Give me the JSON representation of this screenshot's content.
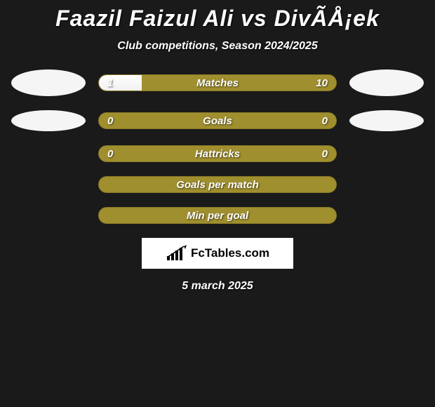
{
  "title": "Faazil Faizul Ali vs DivÃÅ¡ek",
  "subtitle": "Club competitions, Season 2024/2025",
  "date": "5 march 2025",
  "logo": {
    "text": "FcTables.com"
  },
  "colors": {
    "background": "#1a1a1a",
    "bar_bg": "#a08f2e",
    "bar_fill": "#ffffff",
    "text": "#ffffff",
    "avatar": "#f5f5f5"
  },
  "stats": [
    {
      "label": "Matches",
      "left_value": "1",
      "right_value": "10",
      "fill_percent": 18,
      "show_avatar_left": true,
      "show_avatar_right": true,
      "avatar_left_height": 38,
      "avatar_right_height": 38
    },
    {
      "label": "Goals",
      "left_value": "0",
      "right_value": "0",
      "fill_percent": 0,
      "show_avatar_left": true,
      "show_avatar_right": true,
      "avatar_left_height": 30,
      "avatar_right_height": 30
    },
    {
      "label": "Hattricks",
      "left_value": "0",
      "right_value": "0",
      "fill_percent": 0,
      "show_avatar_left": false,
      "show_avatar_right": false
    },
    {
      "label": "Goals per match",
      "left_value": "",
      "right_value": "",
      "fill_percent": 0,
      "show_avatar_left": false,
      "show_avatar_right": false
    },
    {
      "label": "Min per goal",
      "left_value": "",
      "right_value": "",
      "fill_percent": 0,
      "show_avatar_left": false,
      "show_avatar_right": false
    }
  ]
}
